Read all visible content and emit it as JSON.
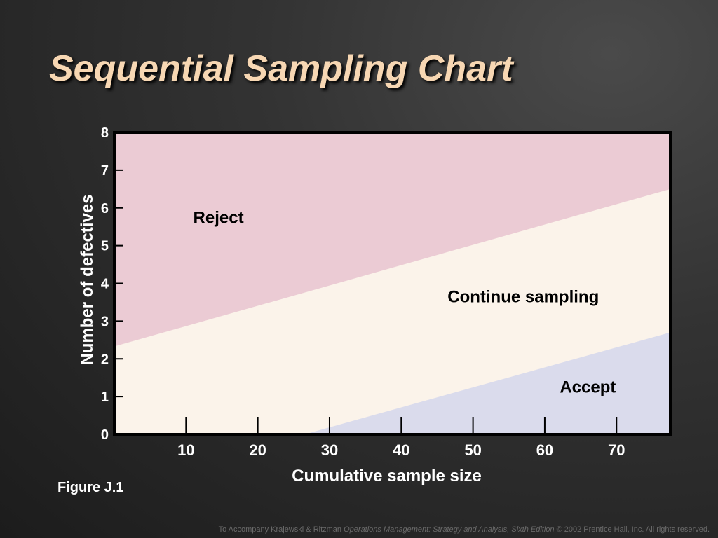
{
  "slide": {
    "title": "Sequential Sampling Chart",
    "figure_label": "Figure J.1",
    "footer": {
      "prefix": "To Accompany Krajewski & Ritzman ",
      "book": "Operations Management: Strategy and Analysis, Sixth Edition",
      "suffix": " © 2002 Prentice Hall, Inc. All rights reserved."
    }
  },
  "chart_data": {
    "type": "area",
    "xlabel": "Cumulative sample size",
    "ylabel": "Number of defectives",
    "xlim": [
      0,
      77.5
    ],
    "ylim": [
      0,
      8
    ],
    "x_ticks": [
      10,
      20,
      30,
      40,
      50,
      60,
      70
    ],
    "y_ticks": [
      0,
      1,
      2,
      3,
      4,
      5,
      6,
      7,
      8
    ],
    "grid": false,
    "reject_line": {
      "x": [
        0,
        77.5
      ],
      "y": [
        2.33,
        6.5
      ]
    },
    "accept_line": {
      "x": [
        26.5,
        77.5
      ],
      "y": [
        0,
        2.7
      ]
    },
    "regions": [
      {
        "label": "Reject",
        "color": "#ebcbd4",
        "label_at": [
          11,
          5.6
        ]
      },
      {
        "label": "Continue sampling",
        "color": "#fbf3ea",
        "label_at": [
          57,
          3.5
        ]
      },
      {
        "label": "Accept",
        "color": "#dadbec",
        "label_at": [
          66,
          1.1
        ]
      }
    ],
    "colors": {
      "frame": "#000000",
      "axis_text": "#ffffff",
      "label_text": "#000000"
    }
  }
}
